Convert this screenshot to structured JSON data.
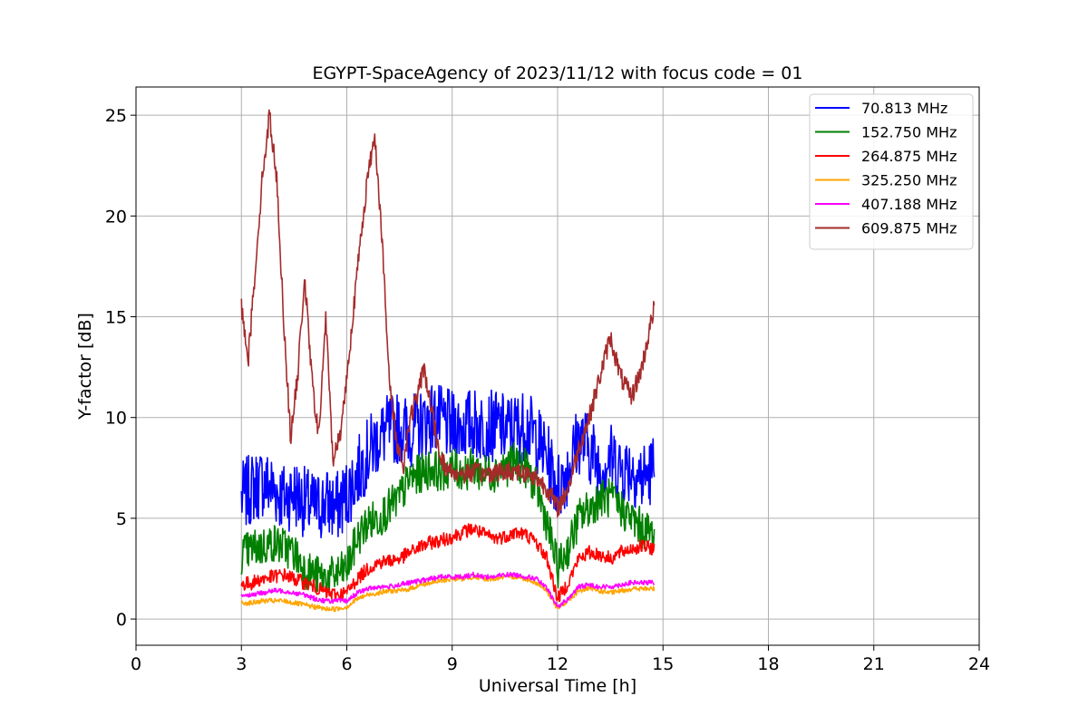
{
  "chart_data": {
    "type": "line",
    "title": "EGYPT-SpaceAgency of 2023/11/12 with focus code = 01",
    "xlabel": "Universal Time [h]",
    "ylabel": "Y-factor [dB]",
    "xlim": [
      0,
      24
    ],
    "ylim": [
      -1.3,
      26.4
    ],
    "xticks": [
      0,
      3,
      6,
      9,
      12,
      15,
      18,
      21,
      24
    ],
    "yticks": [
      0,
      5,
      10,
      15,
      20,
      25
    ],
    "grid": true,
    "legend_position": "top-right",
    "series": [
      {
        "name": "70.813 MHz",
        "color": "#0000ff",
        "noise": 1.8,
        "x": [
          3.0,
          3.3,
          3.6,
          3.9,
          4.2,
          4.5,
          4.8,
          5.1,
          5.4,
          5.7,
          6.0,
          6.3,
          6.6,
          6.9,
          7.2,
          7.5,
          7.8,
          8.1,
          8.4,
          8.7,
          9.0,
          9.3,
          9.6,
          9.9,
          10.2,
          10.5,
          10.8,
          11.1,
          11.4,
          11.7,
          12.0,
          12.3,
          12.6,
          12.9,
          13.2,
          13.5,
          13.8,
          14.1,
          14.4,
          14.75
        ],
        "y": [
          6.0,
          6.5,
          6.8,
          6.5,
          6.0,
          6.3,
          5.8,
          5.5,
          5.8,
          5.5,
          6.2,
          7.2,
          8.2,
          9.0,
          9.4,
          9.5,
          9.3,
          9.6,
          10.0,
          9.8,
          9.5,
          9.6,
          9.7,
          9.5,
          9.6,
          9.4,
          9.5,
          9.6,
          9.0,
          8.0,
          6.5,
          7.5,
          9.0,
          8.5,
          7.5,
          8.0,
          7.5,
          7.5,
          7.0,
          7.5
        ]
      },
      {
        "name": "152.750 MHz",
        "color": "#008000",
        "noise": 1.0,
        "x": [
          3.0,
          3.3,
          3.6,
          3.9,
          4.2,
          4.5,
          4.8,
          5.1,
          5.4,
          5.7,
          6.0,
          6.3,
          6.6,
          6.9,
          7.2,
          7.5,
          7.8,
          8.1,
          8.4,
          8.7,
          9.0,
          9.3,
          9.6,
          9.9,
          10.2,
          10.5,
          10.8,
          11.1,
          11.4,
          11.7,
          12.0,
          12.3,
          12.6,
          12.9,
          13.2,
          13.5,
          13.8,
          14.1,
          14.4,
          14.75
        ],
        "y": [
          3.2,
          3.5,
          3.6,
          3.8,
          3.6,
          3.3,
          2.5,
          2.2,
          2.0,
          2.2,
          2.5,
          4.0,
          4.8,
          5.0,
          5.5,
          6.0,
          7.0,
          7.2,
          7.5,
          7.3,
          7.5,
          7.3,
          7.5,
          7.2,
          7.3,
          7.5,
          7.8,
          7.5,
          6.5,
          4.8,
          2.5,
          3.5,
          5.0,
          5.5,
          6.0,
          6.0,
          5.5,
          5.0,
          4.5,
          4.2
        ]
      },
      {
        "name": "264.875 MHz",
        "color": "#ff0000",
        "noise": 0.35,
        "x": [
          3.0,
          3.3,
          3.6,
          3.9,
          4.2,
          4.5,
          4.8,
          5.1,
          5.4,
          5.7,
          6.0,
          6.3,
          6.6,
          6.9,
          7.2,
          7.5,
          7.8,
          8.1,
          8.4,
          8.7,
          9.0,
          9.3,
          9.6,
          9.9,
          10.2,
          10.5,
          10.8,
          11.1,
          11.4,
          11.7,
          12.0,
          12.3,
          12.6,
          12.9,
          13.2,
          13.5,
          13.8,
          14.1,
          14.4,
          14.75
        ],
        "y": [
          1.7,
          1.8,
          2.0,
          2.1,
          2.2,
          2.0,
          1.8,
          1.6,
          1.3,
          1.2,
          1.3,
          2.0,
          2.5,
          2.8,
          2.9,
          3.0,
          3.3,
          3.6,
          3.8,
          3.9,
          4.1,
          4.3,
          4.5,
          4.2,
          4.0,
          4.1,
          4.3,
          4.2,
          3.8,
          3.0,
          1.0,
          1.8,
          3.0,
          3.3,
          3.2,
          3.0,
          3.3,
          3.5,
          3.6,
          3.5
        ]
      },
      {
        "name": "325.250 MHz",
        "color": "#ffa500",
        "noise": 0.12,
        "x": [
          3.0,
          3.3,
          3.6,
          3.9,
          4.2,
          4.5,
          4.8,
          5.1,
          5.4,
          5.7,
          6.0,
          6.3,
          6.6,
          6.9,
          7.2,
          7.5,
          7.8,
          8.1,
          8.4,
          8.7,
          9.0,
          9.3,
          9.6,
          9.9,
          10.2,
          10.5,
          10.8,
          11.1,
          11.4,
          11.7,
          12.0,
          12.3,
          12.6,
          12.9,
          13.2,
          13.5,
          13.8,
          14.1,
          14.4,
          14.75
        ],
        "y": [
          0.8,
          0.8,
          0.9,
          0.9,
          0.9,
          0.8,
          0.7,
          0.6,
          0.5,
          0.5,
          0.6,
          1.0,
          1.2,
          1.3,
          1.4,
          1.4,
          1.5,
          1.7,
          1.8,
          1.9,
          2.0,
          2.0,
          2.1,
          2.0,
          2.0,
          2.1,
          2.1,
          2.0,
          1.8,
          1.4,
          0.5,
          0.9,
          1.4,
          1.5,
          1.4,
          1.3,
          1.4,
          1.5,
          1.5,
          1.5
        ]
      },
      {
        "name": "407.188 MHz",
        "color": "#ff00ff",
        "noise": 0.12,
        "x": [
          3.0,
          3.3,
          3.6,
          3.9,
          4.2,
          4.5,
          4.8,
          5.1,
          5.4,
          5.7,
          6.0,
          6.3,
          6.6,
          6.9,
          7.2,
          7.5,
          7.8,
          8.1,
          8.4,
          8.7,
          9.0,
          9.3,
          9.6,
          9.9,
          10.2,
          10.5,
          10.8,
          11.1,
          11.4,
          11.7,
          12.0,
          12.3,
          12.6,
          12.9,
          13.2,
          13.5,
          13.8,
          14.1,
          14.4,
          14.75
        ],
        "y": [
          1.2,
          1.2,
          1.3,
          1.4,
          1.4,
          1.3,
          1.2,
          1.0,
          0.9,
          0.9,
          0.9,
          1.3,
          1.5,
          1.6,
          1.6,
          1.7,
          1.8,
          1.9,
          2.0,
          2.1,
          2.1,
          2.1,
          2.2,
          2.1,
          2.1,
          2.2,
          2.2,
          2.1,
          2.0,
          1.5,
          0.6,
          1.0,
          1.6,
          1.7,
          1.6,
          1.6,
          1.7,
          1.8,
          1.8,
          1.8
        ]
      },
      {
        "name": "609.875 MHz",
        "color": "#a52a2a",
        "noise": 0.5,
        "x": [
          3.0,
          3.2,
          3.4,
          3.6,
          3.8,
          4.0,
          4.2,
          4.4,
          4.6,
          4.8,
          5.0,
          5.2,
          5.4,
          5.6,
          5.8,
          6.0,
          6.2,
          6.4,
          6.6,
          6.8,
          7.0,
          7.2,
          7.4,
          7.6,
          7.8,
          8.0,
          8.2,
          8.4,
          8.6,
          8.8,
          9.0,
          9.3,
          9.6,
          9.9,
          10.2,
          10.5,
          10.8,
          11.1,
          11.4,
          11.7,
          12.0,
          12.3,
          12.6,
          12.9,
          13.2,
          13.5,
          13.8,
          14.1,
          14.4,
          14.75
        ],
        "y": [
          15.5,
          13.0,
          17.5,
          22.0,
          25.0,
          22.0,
          15.0,
          9.0,
          12.0,
          17.0,
          12.0,
          9.0,
          15.0,
          8.0,
          9.0,
          12.0,
          15.5,
          19.0,
          22.0,
          24.0,
          19.0,
          12.0,
          9.0,
          7.5,
          10.0,
          11.0,
          12.5,
          10.5,
          8.5,
          7.5,
          7.3,
          7.2,
          7.3,
          7.2,
          7.3,
          7.3,
          7.4,
          7.2,
          7.0,
          6.5,
          5.5,
          6.5,
          8.5,
          10.0,
          12.0,
          14.0,
          12.0,
          11.0,
          12.5,
          15.5
        ]
      }
    ]
  }
}
